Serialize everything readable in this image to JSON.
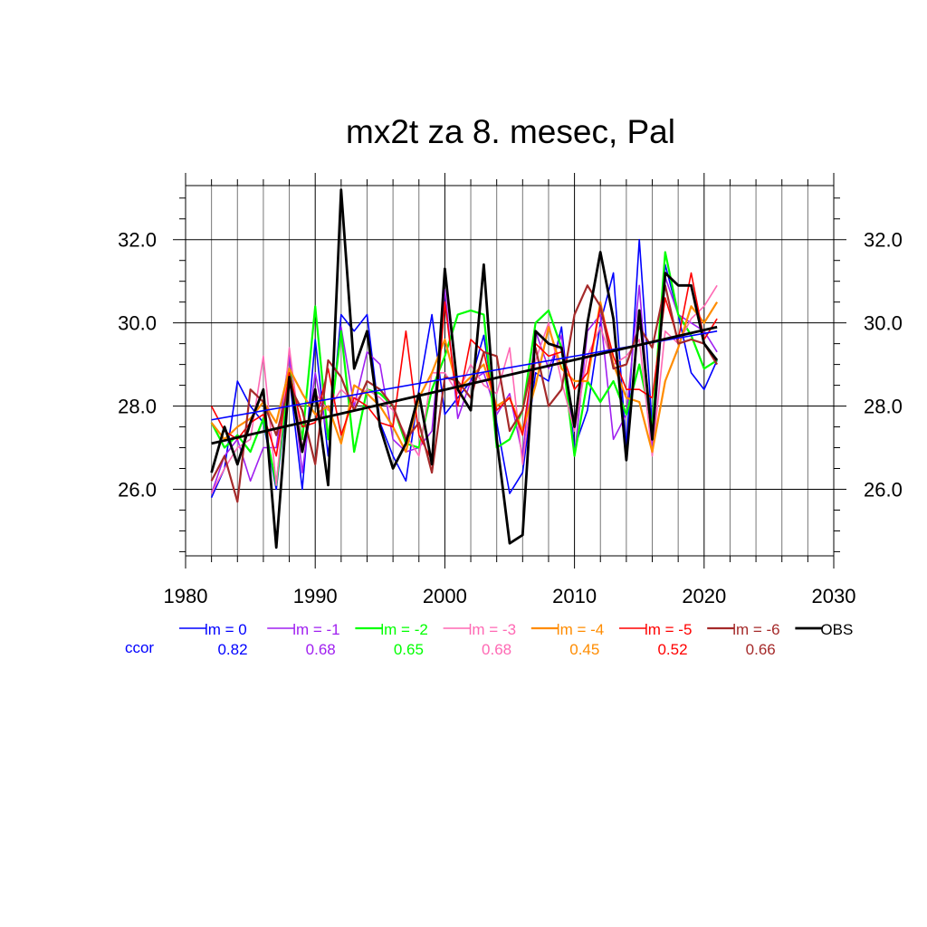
{
  "chart_data": {
    "type": "line",
    "title": "mx2t za 8. mesec, Pal",
    "xlabel": "",
    "ylabel": "",
    "xlim": [
      1980,
      2030
    ],
    "ylim": [
      24.4,
      33.3
    ],
    "x_ticks": [
      1980,
      1990,
      2000,
      2010,
      2020,
      2030
    ],
    "x_tick_labels": [
      "1980",
      "1990",
      "2000",
      "2010",
      "2020",
      "2030"
    ],
    "y_ticks": [
      26.0,
      28.0,
      30.0,
      32.0
    ],
    "y_tick_labels": [
      "26.0",
      "28.0",
      "30.0",
      "32.0"
    ],
    "grid": true,
    "legend_position": "bottom",
    "ccor_label": "ccor",
    "x": [
      1982,
      1983,
      1984,
      1985,
      1986,
      1987,
      1988,
      1989,
      1990,
      1991,
      1992,
      1993,
      1994,
      1995,
      1996,
      1997,
      1998,
      1999,
      2000,
      2001,
      2002,
      2003,
      2004,
      2005,
      2006,
      2007,
      2008,
      2009,
      2010,
      2011,
      2012,
      2013,
      2014,
      2015,
      2016,
      2017,
      2018,
      2019,
      2020,
      2021
    ],
    "series": [
      {
        "name": "lm = 0",
        "ccor": "0.82",
        "color": "#0000ff",
        "width": 1.6,
        "values": [
          25.8,
          26.5,
          28.6,
          28.0,
          27.6,
          26.0,
          28.7,
          26.0,
          29.6,
          26.8,
          30.2,
          29.8,
          30.2,
          27.6,
          26.8,
          26.2,
          28.4,
          30.2,
          27.8,
          28.2,
          28.6,
          29.7,
          27.6,
          25.9,
          26.4,
          28.8,
          28.6,
          29.9,
          27.0,
          27.9,
          30.0,
          31.2,
          27.0,
          32.0,
          27.5,
          31.4,
          30.2,
          28.8,
          28.4,
          29.1
        ],
        "trend": [
          27.67,
          29.8
        ]
      },
      {
        "name": "lm = -1",
        "ccor": "0.68",
        "color": "#a020f0",
        "width": 1.6,
        "values": [
          25.9,
          26.8,
          27.2,
          26.2,
          27.0,
          27.0,
          29.2,
          26.4,
          28.8,
          27.2,
          29.9,
          28.0,
          29.3,
          29.0,
          27.2,
          26.9,
          27.0,
          27.4,
          30.8,
          27.7,
          28.6,
          28.8,
          27.8,
          28.3,
          26.8,
          29.8,
          28.9,
          29.7,
          26.8,
          29.8,
          30.2,
          27.2,
          27.8,
          30.9,
          26.9,
          31.1,
          30.2,
          30.0,
          29.8,
          29.3
        ]
      },
      {
        "name": "lm = -2",
        "ccor": "0.65",
        "color": "#00ff00",
        "width": 2.2,
        "values": [
          27.6,
          27.0,
          27.3,
          26.9,
          27.7,
          26.1,
          28.9,
          27.2,
          30.4,
          27.2,
          29.8,
          26.9,
          28.4,
          28.3,
          28.0,
          27.1,
          27.0,
          28.4,
          29.2,
          30.2,
          30.3,
          30.2,
          27.0,
          27.2,
          27.9,
          30.0,
          30.3,
          29.4,
          26.8,
          28.6,
          28.1,
          28.6,
          27.8,
          29.0,
          27.5,
          31.7,
          30.2,
          29.7,
          28.9,
          29.1
        ]
      },
      {
        "name": "lm = -3",
        "ccor": "0.68",
        "color": "#ff69b4",
        "width": 1.6,
        "values": [
          25.9,
          26.5,
          27.0,
          27.2,
          29.2,
          26.1,
          29.4,
          27.0,
          28.3,
          27.9,
          28.4,
          28.1,
          28.4,
          28.2,
          27.9,
          27.3,
          26.8,
          28.8,
          28.8,
          28.3,
          29.0,
          28.5,
          28.3,
          29.4,
          26.6,
          29.1,
          30.0,
          28.6,
          27.4,
          29.2,
          29.9,
          29.0,
          29.2,
          29.6,
          26.8,
          29.8,
          29.5,
          30.1,
          30.4,
          30.9
        ]
      },
      {
        "name": "lm = -4",
        "ccor": "0.45",
        "color": "#ff8c00",
        "width": 2.2,
        "values": [
          27.6,
          27.2,
          27.5,
          27.7,
          28.1,
          27.6,
          28.9,
          28.3,
          27.8,
          28.0,
          27.1,
          28.5,
          28.3,
          28.0,
          27.5,
          26.9,
          28.2,
          28.8,
          29.6,
          28.4,
          28.7,
          29.0,
          28.0,
          28.2,
          27.4,
          28.5,
          29.9,
          28.9,
          28.6,
          28.6,
          30.5,
          29.0,
          28.2,
          28.1,
          26.9,
          28.6,
          29.4,
          30.4,
          30.0,
          30.5
        ]
      },
      {
        "name": "lm = -5",
        "ccor": "0.52",
        "color": "#ff0000",
        "width": 1.6,
        "values": [
          28.0,
          27.4,
          27.2,
          27.6,
          27.8,
          26.8,
          28.8,
          27.5,
          27.6,
          28.9,
          27.3,
          28.2,
          28.0,
          27.6,
          27.5,
          29.8,
          27.3,
          26.7,
          30.5,
          28.0,
          29.6,
          29.3,
          27.9,
          28.2,
          27.3,
          29.5,
          29.2,
          29.3,
          28.4,
          28.8,
          30.4,
          29.2,
          28.4,
          28.4,
          28.2,
          30.6,
          29.6,
          31.2,
          29.6,
          30.1
        ]
      },
      {
        "name": "lm = -6",
        "ccor": "0.66",
        "color": "#a52a2a",
        "width": 2.2,
        "values": [
          26.2,
          26.8,
          25.7,
          28.4,
          28.1,
          27.3,
          28.5,
          27.9,
          26.6,
          29.1,
          28.7,
          27.9,
          28.6,
          28.4,
          28.0,
          27.2,
          27.6,
          26.4,
          28.7,
          28.6,
          28.2,
          29.3,
          29.2,
          27.4,
          27.9,
          29.4,
          28.0,
          28.4,
          30.2,
          30.9,
          30.4,
          28.9,
          29.0,
          29.9,
          29.4,
          30.9,
          29.5,
          29.6,
          29.5,
          29.0
        ]
      },
      {
        "name": "OBS",
        "ccor": "",
        "color": "#000000",
        "width": 2.8,
        "values": [
          26.4,
          27.5,
          26.6,
          27.6,
          28.4,
          24.6,
          28.7,
          26.9,
          28.4,
          26.1,
          33.2,
          28.9,
          29.8,
          27.5,
          26.5,
          27.1,
          28.3,
          26.6,
          31.3,
          28.4,
          27.9,
          31.4,
          27.2,
          24.7,
          24.9,
          29.8,
          29.5,
          29.4,
          27.5,
          30.0,
          31.7,
          30.1,
          26.7,
          30.3,
          27.2,
          31.2,
          30.9,
          30.9,
          29.5,
          29.1
        ],
        "trend": [
          27.1,
          29.9
        ]
      }
    ]
  }
}
